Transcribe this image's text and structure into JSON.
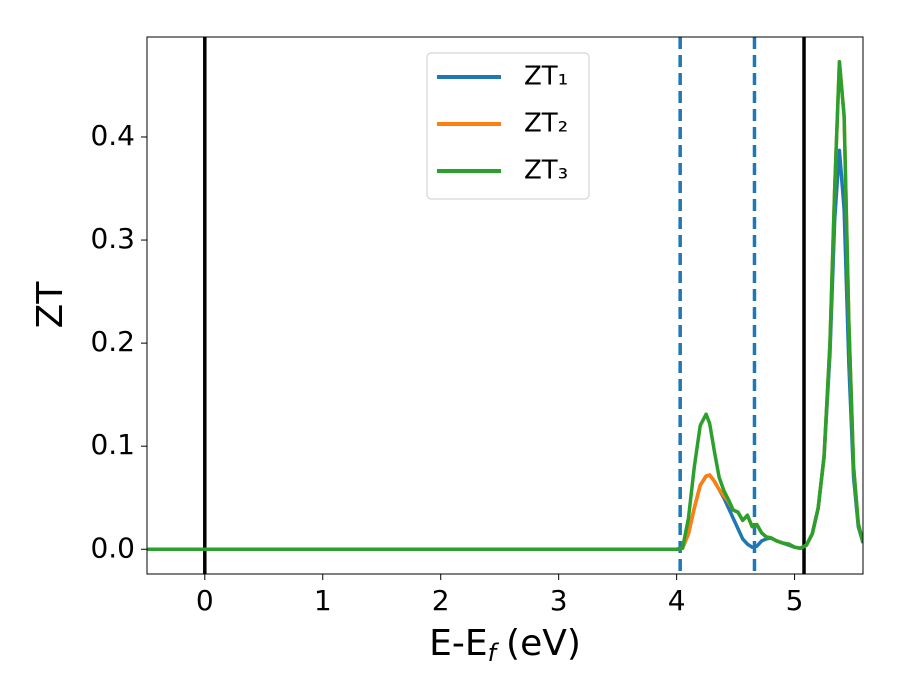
{
  "chart_data": {
    "type": "line",
    "ylabel": "ZT",
    "xlabel": {
      "main": "E-E",
      "subscript": "f",
      "suffix": "(eV)"
    },
    "x": [
      -0.5,
      4.0,
      4.05,
      4.1,
      4.15,
      4.2,
      4.25,
      4.28,
      4.32,
      4.36,
      4.4,
      4.44,
      4.48,
      4.52,
      4.56,
      4.6,
      4.64,
      4.68,
      4.72,
      4.76,
      4.8,
      4.85,
      4.9,
      4.95,
      5.0,
      5.05,
      5.1,
      5.15,
      5.2,
      5.25,
      5.3,
      5.34,
      5.38,
      5.42,
      5.46,
      5.5,
      5.54,
      5.58
    ],
    "series": [
      {
        "name": "ZT₁",
        "color": "#1f77b4",
        "values": [
          0,
          0,
          0.001,
          0.015,
          0.04,
          0.062,
          0.071,
          0.072,
          0.066,
          0.058,
          0.05,
          0.04,
          0.03,
          0.02,
          0.01,
          0.005,
          0.002,
          0.003,
          0.008,
          0.01,
          0.011,
          0.008,
          0.006,
          0.004,
          0.002,
          0.001,
          0.004,
          0.015,
          0.04,
          0.09,
          0.19,
          0.32,
          0.387,
          0.33,
          0.18,
          0.07,
          0.022,
          0.006
        ]
      },
      {
        "name": "ZT₂",
        "color": "#ff7f0e",
        "values": [
          0,
          0,
          0.001,
          0.015,
          0.04,
          0.062,
          0.071,
          0.072,
          0.066,
          0.058,
          0.052,
          0.046,
          0.038,
          0.036,
          0.028,
          0.033,
          0.022,
          0.024,
          0.016,
          0.012,
          0.011,
          0.008,
          0.006,
          0.005,
          0.002,
          0.001,
          0.004,
          0.015,
          0.04,
          0.09,
          0.2,
          0.35,
          0.473,
          0.42,
          0.22,
          0.08,
          0.025,
          0.007
        ]
      },
      {
        "name": "ZT₃",
        "color": "#2ca02c",
        "values": [
          0,
          0,
          0.001,
          0.03,
          0.08,
          0.12,
          0.131,
          0.122,
          0.095,
          0.07,
          0.057,
          0.048,
          0.038,
          0.036,
          0.028,
          0.033,
          0.022,
          0.024,
          0.016,
          0.012,
          0.011,
          0.008,
          0.006,
          0.005,
          0.002,
          0.001,
          0.004,
          0.015,
          0.04,
          0.09,
          0.2,
          0.35,
          0.473,
          0.42,
          0.22,
          0.08,
          0.025,
          0.007
        ]
      }
    ],
    "vlines": [
      {
        "x": 0,
        "color": "#000000",
        "style": "solid"
      },
      {
        "x": 5.08,
        "color": "#000000",
        "style": "solid"
      },
      {
        "x": 4.03,
        "color": "#1f77b4",
        "style": "dashed"
      },
      {
        "x": 4.66,
        "color": "#1f77b4",
        "style": "dashed"
      }
    ],
    "xlim": [
      -0.49,
      5.58
    ],
    "ylim": [
      -0.024,
      0.497
    ],
    "xticks": [
      0,
      1,
      2,
      3,
      4,
      5
    ],
    "yticks": [
      {
        "value": 0,
        "label": "0.0"
      },
      0.1,
      0.2,
      0.3,
      0.4
    ],
    "legend": "upper center"
  }
}
